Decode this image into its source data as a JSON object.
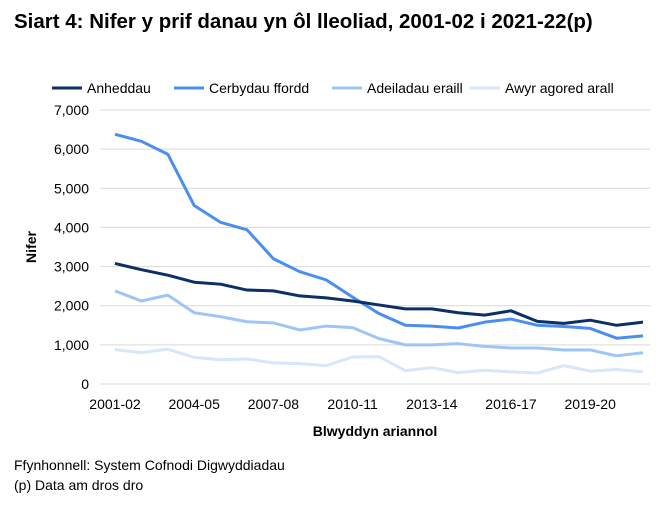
{
  "chart_data": {
    "type": "line",
    "title": "Siart 4: Nifer y prif danau yn ôl lleoliad, 2001-02 i 2021-22(p)",
    "xlabel": "Blwyddyn ariannol",
    "ylabel": "Nifer",
    "ylim": [
      0,
      7000
    ],
    "yticks": [
      0,
      1000,
      2000,
      3000,
      4000,
      5000,
      6000,
      7000
    ],
    "ytick_labels": [
      "0",
      "1,000",
      "2,000",
      "3,000",
      "4,000",
      "5,000",
      "6,000",
      "7,000"
    ],
    "grid": true,
    "legend_position": "top",
    "categories": [
      "2001-02",
      "2002-03",
      "2003-04",
      "2004-05",
      "2005-06",
      "2006-07",
      "2007-08",
      "2008-09",
      "2009-10",
      "2010-11",
      "2011-12",
      "2012-13",
      "2013-14",
      "2014-15",
      "2015-16",
      "2016-17",
      "2017-18",
      "2018-19",
      "2019-20",
      "2020-21",
      "2021-22(p)"
    ],
    "xtick_labels": [
      "2001-02",
      "2004-05",
      "2007-08",
      "2010-11",
      "2013-14",
      "2016-17",
      "2019-20"
    ],
    "series": [
      {
        "name": "Anheddau",
        "color": "#0b2f66",
        "values": [
          3080,
          2920,
          2780,
          2600,
          2550,
          2400,
          2380,
          2250,
          2200,
          2120,
          2020,
          1920,
          1920,
          1820,
          1760,
          1870,
          1600,
          1550,
          1630,
          1500,
          1580
        ]
      },
      {
        "name": "Cerbydau ffordd",
        "color": "#4a8ff0",
        "values": [
          6380,
          6200,
          5870,
          4560,
          4130,
          3940,
          3200,
          2870,
          2660,
          2220,
          1800,
          1500,
          1480,
          1430,
          1580,
          1660,
          1500,
          1470,
          1420,
          1170,
          1230
        ]
      },
      {
        "name": "Adeiladau eraill",
        "color": "#9ec5f8",
        "values": [
          2380,
          2120,
          2270,
          1820,
          1720,
          1590,
          1560,
          1380,
          1480,
          1440,
          1160,
          1000,
          1000,
          1030,
          960,
          920,
          920,
          870,
          870,
          720,
          800
        ]
      },
      {
        "name": "Awyr agored arall",
        "color": "#d6e7fc",
        "values": [
          880,
          800,
          890,
          680,
          620,
          640,
          540,
          520,
          470,
          690,
          700,
          340,
          420,
          290,
          350,
          310,
          280,
          470,
          330,
          370,
          310
        ]
      }
    ]
  },
  "footer": {
    "source": "Ffynhonnell: System Cofnodi Digwyddiadau",
    "note": "(p) Data am dros dro"
  }
}
